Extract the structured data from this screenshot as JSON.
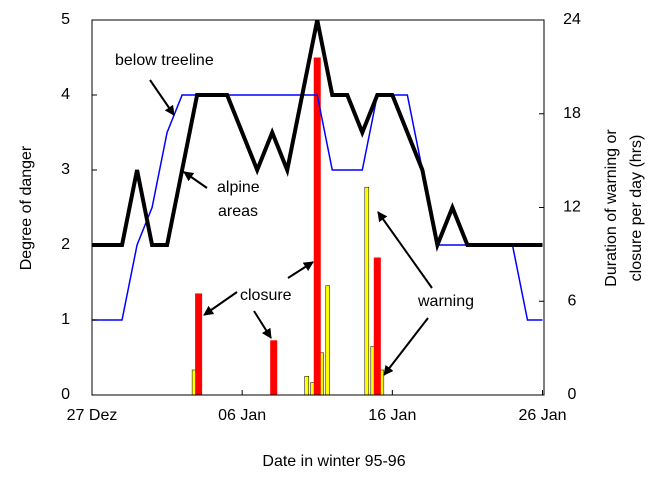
{
  "chart_data": {
    "type": "line",
    "xlabel": "Date in winter 95-96",
    "ylabel": "Degree of  danger",
    "y2label": [
      "Duration of warning or",
      "closure per day (hrs)"
    ],
    "xlim": [
      0,
      30.1
    ],
    "ylim": [
      0,
      5
    ],
    "y2lim": [
      0,
      24
    ],
    "xticks": [
      {
        "value": 0,
        "label": "27 Dez"
      },
      {
        "value": 10,
        "label": "06 Jan"
      },
      {
        "value": 20,
        "label": "16 Jan"
      },
      {
        "value": 30,
        "label": "26 Jan"
      }
    ],
    "yticks": [
      0,
      1,
      2,
      3,
      4,
      5
    ],
    "y2ticks": [
      0,
      6,
      12,
      18,
      24
    ],
    "series": [
      {
        "type": "bar",
        "color": "#ffff00",
        "axis": "y2",
        "x": [
          6.8,
          14.3,
          14.7,
          15.3,
          15.7,
          18.3,
          18.7,
          19.3
        ],
        "values": [
          1.6,
          1.2,
          0.8,
          2.7,
          7.0,
          13.3,
          3.1,
          1.6
        ]
      },
      {
        "type": "bar",
        "color": "#ff0000",
        "axis": "y2",
        "x": [
          7.1,
          12.1,
          15,
          19
        ],
        "values": [
          6.5,
          3.5,
          21.6,
          8.8
        ]
      },
      {
        "type": "line",
        "color": "#0000ff",
        "width": 1.5,
        "x": [
          0,
          2,
          3,
          4,
          5,
          6,
          14,
          15,
          16,
          18,
          19,
          21,
          23,
          28,
          29,
          30
        ],
        "values": [
          1,
          1,
          2,
          2.5,
          3.5,
          4,
          4,
          4,
          3,
          3,
          4,
          4,
          2,
          2,
          1,
          1
        ]
      },
      {
        "type": "line",
        "color": "#000000",
        "width": 4,
        "x": [
          0,
          2,
          3,
          4,
          5,
          7,
          9,
          11,
          12,
          13,
          15,
          16,
          17,
          18,
          19,
          20,
          22,
          23,
          24,
          25,
          30
        ],
        "values": [
          2,
          2,
          3,
          2,
          2,
          4,
          4,
          3,
          3.5,
          3,
          5,
          4,
          4,
          3.5,
          4,
          4,
          3,
          2,
          2.5,
          2,
          2
        ]
      }
    ],
    "annotations": [
      "below treeline",
      "alpine",
      "areas",
      "closure",
      "warning"
    ]
  }
}
